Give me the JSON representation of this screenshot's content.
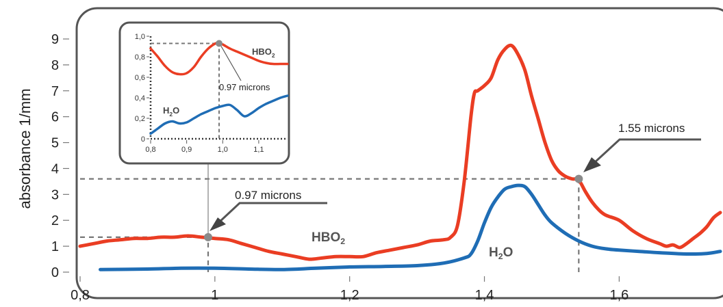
{
  "chart_data": [
    {
      "id": "main",
      "type": "line",
      "title": "",
      "xlabel": "",
      "ylabel": "absorbance 1/mm",
      "xlim": [
        0.8,
        1.75
      ],
      "ylim": [
        0,
        9
      ],
      "xticks": [
        0.8,
        1.0,
        1.2,
        1.4,
        1.6
      ],
      "xtick_labels": [
        "0,8",
        "1",
        "1,2",
        "1,4",
        "1,6"
      ],
      "yticks": [
        0,
        1,
        2,
        3,
        4,
        5,
        6,
        7,
        8,
        9
      ],
      "ytick_labels": [
        "0",
        "1",
        "2",
        "3",
        "4",
        "5",
        "6",
        "7",
        "8",
        "9"
      ],
      "grid": false,
      "series": [
        {
          "name": "HBO2",
          "label_parts": [
            "HBO",
            "2"
          ],
          "color": "#ea3d23",
          "x": [
            0.8,
            0.82,
            0.84,
            0.86,
            0.88,
            0.9,
            0.92,
            0.94,
            0.96,
            0.98,
            1.0,
            1.02,
            1.04,
            1.06,
            1.08,
            1.1,
            1.12,
            1.14,
            1.16,
            1.18,
            1.2,
            1.22,
            1.24,
            1.26,
            1.28,
            1.3,
            1.32,
            1.34,
            1.35,
            1.36,
            1.37,
            1.38,
            1.385,
            1.39,
            1.4,
            1.41,
            1.42,
            1.43,
            1.44,
            1.45,
            1.46,
            1.47,
            1.48,
            1.49,
            1.5,
            1.51,
            1.52,
            1.53,
            1.54,
            1.55,
            1.56,
            1.57,
            1.58,
            1.6,
            1.62,
            1.64,
            1.66,
            1.67,
            1.68,
            1.69,
            1.7,
            1.71,
            1.72,
            1.73,
            1.74,
            1.75
          ],
          "y": [
            1.0,
            1.1,
            1.2,
            1.25,
            1.3,
            1.3,
            1.35,
            1.35,
            1.4,
            1.35,
            1.3,
            1.25,
            1.1,
            0.95,
            0.8,
            0.7,
            0.6,
            0.5,
            0.55,
            0.6,
            0.6,
            0.6,
            0.75,
            0.85,
            0.95,
            1.05,
            1.2,
            1.25,
            1.35,
            1.8,
            3.5,
            6.0,
            6.9,
            7.0,
            7.2,
            7.5,
            8.2,
            8.6,
            8.75,
            8.4,
            7.8,
            6.8,
            5.9,
            5.0,
            4.3,
            3.9,
            3.7,
            3.6,
            3.55,
            3.1,
            2.7,
            2.4,
            2.2,
            2.0,
            1.6,
            1.3,
            1.1,
            1.0,
            1.05,
            0.95,
            1.1,
            1.3,
            1.5,
            1.75,
            2.1,
            2.3
          ]
        },
        {
          "name": "H2O",
          "label_parts": [
            "H",
            "2",
            "O"
          ],
          "color": "#1f6db5",
          "x": [
            0.83,
            0.9,
            0.95,
            1.0,
            1.05,
            1.1,
            1.15,
            1.2,
            1.25,
            1.3,
            1.34,
            1.37,
            1.38,
            1.39,
            1.4,
            1.41,
            1.42,
            1.43,
            1.44,
            1.45,
            1.46,
            1.47,
            1.48,
            1.49,
            1.5,
            1.52,
            1.54,
            1.56,
            1.58,
            1.6,
            1.63,
            1.66,
            1.7,
            1.73,
            1.75
          ],
          "y": [
            0.1,
            0.12,
            0.15,
            0.15,
            0.12,
            0.1,
            0.15,
            0.2,
            0.22,
            0.25,
            0.35,
            0.55,
            0.7,
            1.2,
            1.9,
            2.5,
            2.9,
            3.2,
            3.3,
            3.35,
            3.3,
            3.0,
            2.6,
            2.2,
            1.9,
            1.5,
            1.2,
            1.0,
            0.9,
            0.85,
            0.8,
            0.75,
            0.7,
            0.72,
            0.8
          ]
        }
      ],
      "annotations": [
        {
          "text": "0.97 microns",
          "x": 0.99,
          "y": 1.35
        },
        {
          "text": "1.55 microns",
          "x": 1.54,
          "y": 3.6
        }
      ]
    },
    {
      "id": "inset",
      "type": "line",
      "xlim": [
        0.8,
        1.18
      ],
      "ylim": [
        0,
        1.0
      ],
      "xticks": [
        0.8,
        0.9,
        1.0,
        1.1
      ],
      "xtick_labels": [
        "0,8",
        "0,9",
        "1,0",
        "1,1"
      ],
      "yticks": [
        0,
        0.2,
        0.4,
        0.6,
        0.8,
        1.0
      ],
      "ytick_labels": [
        "0",
        "0,2",
        "0,4",
        "0,6",
        "0,8",
        "1,0"
      ],
      "series": [
        {
          "name": "HBO2",
          "label_parts": [
            "HBO",
            "2"
          ],
          "color": "#ea3d23",
          "x": [
            0.8,
            0.82,
            0.84,
            0.86,
            0.88,
            0.9,
            0.92,
            0.94,
            0.96,
            0.98,
            0.99,
            1.0,
            1.02,
            1.04,
            1.06,
            1.08,
            1.1,
            1.12,
            1.14,
            1.16,
            1.18
          ],
          "y": [
            0.88,
            0.8,
            0.71,
            0.65,
            0.63,
            0.64,
            0.7,
            0.8,
            0.88,
            0.93,
            0.93,
            0.92,
            0.88,
            0.85,
            0.82,
            0.79,
            0.76,
            0.74,
            0.73,
            0.73,
            0.73
          ]
        },
        {
          "name": "H2O",
          "label_parts": [
            "H",
            "2",
            "O"
          ],
          "color": "#1f6db5",
          "x": [
            0.8,
            0.82,
            0.84,
            0.86,
            0.88,
            0.9,
            0.92,
            0.94,
            0.96,
            0.98,
            1.0,
            1.02,
            1.04,
            1.06,
            1.08,
            1.1,
            1.12,
            1.14,
            1.16,
            1.18
          ],
          "y": [
            0.05,
            0.1,
            0.15,
            0.17,
            0.15,
            0.16,
            0.2,
            0.24,
            0.27,
            0.3,
            0.32,
            0.33,
            0.28,
            0.22,
            0.25,
            0.3,
            0.34,
            0.37,
            0.4,
            0.42
          ]
        }
      ],
      "annotations": [
        {
          "text": "0.97 microns",
          "x": 0.99,
          "y": 0.93
        }
      ]
    }
  ]
}
